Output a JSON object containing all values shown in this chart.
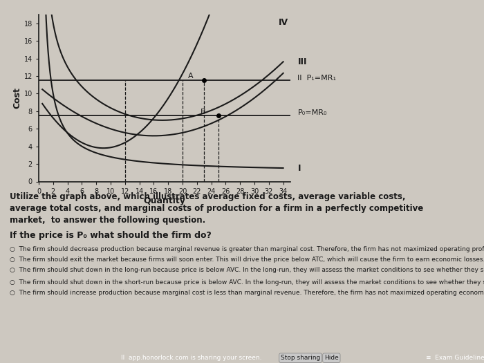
{
  "title": "",
  "xlabel": "Quantity",
  "ylabel": "Cost",
  "xlim": [
    0,
    35
  ],
  "ylim": [
    0,
    19
  ],
  "xticks": [
    0,
    2,
    4,
    6,
    8,
    10,
    12,
    14,
    16,
    18,
    20,
    22,
    24,
    26,
    28,
    30,
    32,
    34
  ],
  "yticks": [
    0,
    2,
    4,
    6,
    8,
    10,
    12,
    14,
    16,
    18
  ],
  "p1_level": 11.5,
  "p0_level": 7.5,
  "afc_label": "I",
  "avc_label": "II",
  "atc_label": "III",
  "mc_label": "IV",
  "p1_label": "P₁=MR₁",
  "p0_label": "P₀=MR₀",
  "curve_color": "#1a1a1a",
  "bg_color": "#cdc8c0",
  "text_color": "#1a1a1a",
  "point_A": [
    23,
    11.5
  ],
  "point_B": [
    25,
    7.5
  ],
  "dashed_x1": 12,
  "dashed_x2": 20,
  "question_text_line1": "Utilize the graph above, which illustrates average fixed costs, average variable costs,",
  "question_text_line2": "average total costs, and marginal costs of production for a firm in a perfectly competitive",
  "question_text_line3": "market,  to answer the following question.",
  "question": "If the price is P₀ what should the firm do?",
  "choices": [
    "The firm should decrease production because marginal revenue is greater than marginal cost. Therefore, the firm has not maximized operating profits.",
    "The firm should exit the market because firms will soon enter. This will drive the price below ATC, which will cause the firm to earn economic losses.",
    "The firm should shut down in the long-run because price is below AVC. In the long-run, they will assess the market conditions to see whether they should reopen for business or exit the market.    They will reopen if price remains below AVC.",
    "The firm should shut down in the short-run because price is below AVC. In the long-run, they will assess the market conditions to see whether they should reopen for business or exit the market.",
    "The firm should increase production because marginal cost is less than marginal revenue. Therefore, the firm has not maximized operating economic profits."
  ],
  "bottom_bar_color": "#1a3a5c",
  "bottom_text": "II  app.honorlock.com is sharing your screen.",
  "stop_sharing": "Stop sharing",
  "hide": "Hide",
  "exam_guidelines": "≡  Exam Guidelines"
}
